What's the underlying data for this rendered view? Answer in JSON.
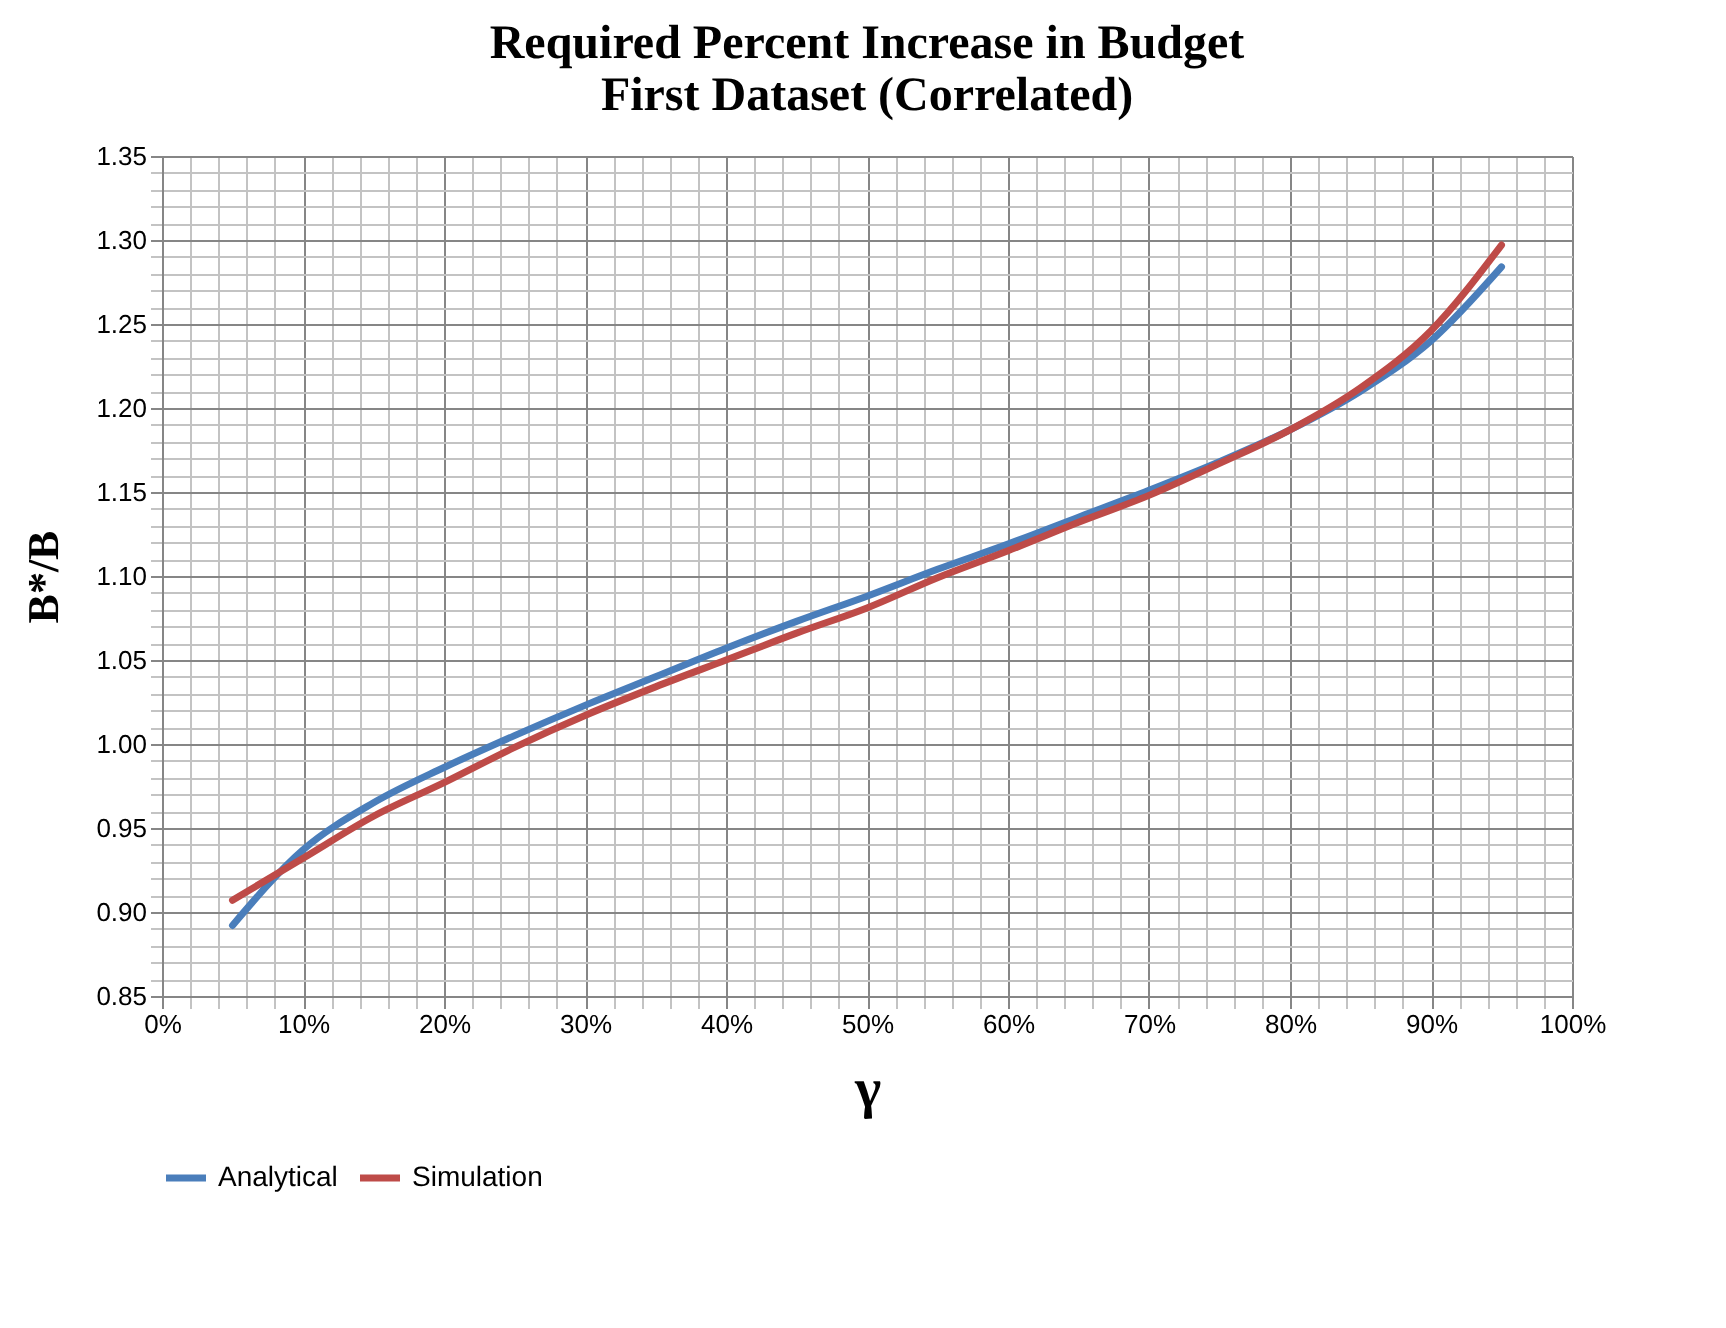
{
  "chart_data": {
    "type": "line",
    "title": "Required Percent Increase in Budget",
    "subtitle": "First Dataset (Correlated)",
    "xlabel": "γ",
    "ylabel": "B*/B",
    "x": [
      0.05,
      0.1,
      0.15,
      0.2,
      0.25,
      0.3,
      0.35,
      0.4,
      0.45,
      0.5,
      0.55,
      0.6,
      0.65,
      0.7,
      0.75,
      0.8,
      0.85,
      0.9,
      0.95
    ],
    "series": [
      {
        "name": "Analytical",
        "color": "#4a7ebb",
        "values": [
          0.892,
          0.937,
          0.965,
          0.986,
          1.005,
          1.023,
          1.04,
          1.057,
          1.073,
          1.088,
          1.104,
          1.119,
          1.135,
          1.151,
          1.168,
          1.187,
          1.21,
          1.24,
          1.284
        ]
      },
      {
        "name": "Simulation",
        "color": "#be4b48",
        "values": [
          0.907,
          0.932,
          0.957,
          0.977,
          0.998,
          1.017,
          1.034,
          1.05,
          1.066,
          1.081,
          1.099,
          1.115,
          1.132,
          1.148,
          1.167,
          1.187,
          1.212,
          1.246,
          1.297
        ]
      }
    ],
    "xlim": [
      0,
      1
    ],
    "ylim": [
      0.85,
      1.35
    ],
    "xticks": [
      {
        "value": 0,
        "label": "0%"
      },
      {
        "value": 0.02,
        "label": null
      },
      {
        "value": 0.04,
        "label": null
      },
      {
        "value": 0.06,
        "label": null
      },
      {
        "value": 0.08,
        "label": null
      },
      {
        "value": 0.1,
        "label": "10%"
      },
      {
        "value": 0.12,
        "label": null
      },
      {
        "value": 0.14,
        "label": null
      },
      {
        "value": 0.16,
        "label": null
      },
      {
        "value": 0.18,
        "label": null
      },
      {
        "value": 0.2,
        "label": "20%"
      },
      {
        "value": 0.22,
        "label": null
      },
      {
        "value": 0.24,
        "label": null
      },
      {
        "value": 0.26,
        "label": null
      },
      {
        "value": 0.28,
        "label": null
      },
      {
        "value": 0.3,
        "label": "30%"
      },
      {
        "value": 0.32,
        "label": null
      },
      {
        "value": 0.34,
        "label": null
      },
      {
        "value": 0.36,
        "label": null
      },
      {
        "value": 0.38,
        "label": null
      },
      {
        "value": 0.4,
        "label": "40%"
      },
      {
        "value": 0.42,
        "label": null
      },
      {
        "value": 0.44,
        "label": null
      },
      {
        "value": 0.46,
        "label": null
      },
      {
        "value": 0.48,
        "label": null
      },
      {
        "value": 0.5,
        "label": "50%"
      },
      {
        "value": 0.52,
        "label": null
      },
      {
        "value": 0.54,
        "label": null
      },
      {
        "value": 0.56,
        "label": null
      },
      {
        "value": 0.58,
        "label": null
      },
      {
        "value": 0.6,
        "label": "60%"
      },
      {
        "value": 0.62,
        "label": null
      },
      {
        "value": 0.64,
        "label": null
      },
      {
        "value": 0.66,
        "label": null
      },
      {
        "value": 0.68,
        "label": null
      },
      {
        "value": 0.7,
        "label": "70%"
      },
      {
        "value": 0.72,
        "label": null
      },
      {
        "value": 0.74,
        "label": null
      },
      {
        "value": 0.76,
        "label": null
      },
      {
        "value": 0.78,
        "label": null
      },
      {
        "value": 0.8,
        "label": "80%"
      },
      {
        "value": 0.82,
        "label": null
      },
      {
        "value": 0.84,
        "label": null
      },
      {
        "value": 0.86,
        "label": null
      },
      {
        "value": 0.88,
        "label": null
      },
      {
        "value": 0.9,
        "label": "90%"
      },
      {
        "value": 0.92,
        "label": null
      },
      {
        "value": 0.94,
        "label": null
      },
      {
        "value": 0.96,
        "label": null
      },
      {
        "value": 0.98,
        "label": null
      },
      {
        "value": 1,
        "label": "100%"
      }
    ],
    "yticks": [
      {
        "value": 0.85,
        "label": "0.85"
      },
      {
        "value": 0.86,
        "label": null
      },
      {
        "value": 0.87,
        "label": null
      },
      {
        "value": 0.88,
        "label": null
      },
      {
        "value": 0.89,
        "label": null
      },
      {
        "value": 0.9,
        "label": "0.90"
      },
      {
        "value": 0.91,
        "label": null
      },
      {
        "value": 0.92,
        "label": null
      },
      {
        "value": 0.93,
        "label": null
      },
      {
        "value": 0.94,
        "label": null
      },
      {
        "value": 0.95,
        "label": "0.95"
      },
      {
        "value": 0.96,
        "label": null
      },
      {
        "value": 0.97,
        "label": null
      },
      {
        "value": 0.98,
        "label": null
      },
      {
        "value": 0.99,
        "label": null
      },
      {
        "value": 1.0,
        "label": "1.00"
      },
      {
        "value": 1.01,
        "label": null
      },
      {
        "value": 1.02,
        "label": null
      },
      {
        "value": 1.03,
        "label": null
      },
      {
        "value": 1.04,
        "label": null
      },
      {
        "value": 1.05,
        "label": "1.05"
      },
      {
        "value": 1.06,
        "label": null
      },
      {
        "value": 1.07,
        "label": null
      },
      {
        "value": 1.08,
        "label": null
      },
      {
        "value": 1.09,
        "label": null
      },
      {
        "value": 1.1,
        "label": "1.10"
      },
      {
        "value": 1.11,
        "label": null
      },
      {
        "value": 1.12,
        "label": null
      },
      {
        "value": 1.13,
        "label": null
      },
      {
        "value": 1.14,
        "label": null
      },
      {
        "value": 1.15,
        "label": "1.15"
      },
      {
        "value": 1.16,
        "label": null
      },
      {
        "value": 1.17,
        "label": null
      },
      {
        "value": 1.18,
        "label": null
      },
      {
        "value": 1.19,
        "label": null
      },
      {
        "value": 1.2,
        "label": "1.20"
      },
      {
        "value": 1.21,
        "label": null
      },
      {
        "value": 1.22,
        "label": null
      },
      {
        "value": 1.23,
        "label": null
      },
      {
        "value": 1.24,
        "label": null
      },
      {
        "value": 1.25,
        "label": "1.25"
      },
      {
        "value": 1.26,
        "label": null
      },
      {
        "value": 1.27,
        "label": null
      },
      {
        "value": 1.28,
        "label": null
      },
      {
        "value": 1.29,
        "label": null
      },
      {
        "value": 1.3,
        "label": "1.30"
      },
      {
        "value": 1.31,
        "label": null
      },
      {
        "value": 1.32,
        "label": null
      },
      {
        "value": 1.33,
        "label": null
      },
      {
        "value": 1.34,
        "label": null
      },
      {
        "value": 1.35,
        "label": "1.35"
      }
    ],
    "grid": true,
    "legend": "bottom",
    "line_style": "solid"
  }
}
